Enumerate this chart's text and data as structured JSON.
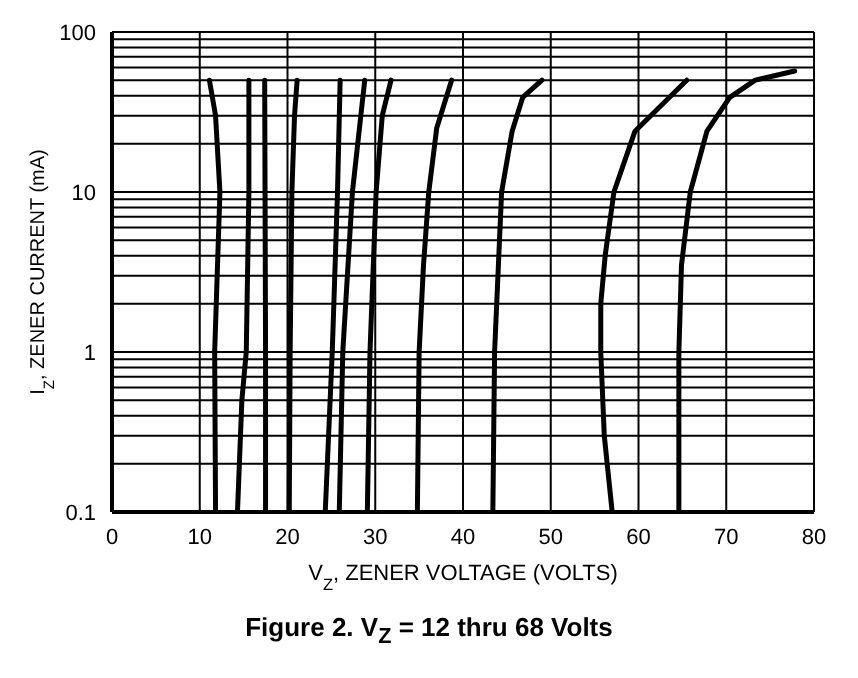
{
  "chart_data": {
    "type": "line",
    "title": "Figure 2. V$_{Z}$ = 12 thru 68 Volts",
    "xlabel": "V$_{Z}$, ZENER VOLTAGE (VOLTS)",
    "ylabel": "I$_{Z}$, ZENER CURRENT (mA)",
    "log": "y",
    "grid": true,
    "legend": false,
    "marker": "none",
    "line_style": "solid",
    "xlim": [
      0,
      80
    ],
    "xticks": [
      0,
      10,
      20,
      30,
      40,
      50,
      60,
      70,
      80
    ],
    "ylim": [
      0.1,
      100
    ],
    "yticks": [
      0.1,
      {
        "value": 0.2,
        "label": null
      },
      {
        "value": 0.3,
        "label": null
      },
      {
        "value": 0.4,
        "label": null
      },
      {
        "value": 0.5,
        "label": null
      },
      {
        "value": 0.6,
        "label": null
      },
      {
        "value": 0.7,
        "label": null
      },
      {
        "value": 0.8,
        "label": null
      },
      {
        "value": 0.9,
        "label": null
      },
      1,
      {
        "value": 2,
        "label": null
      },
      {
        "value": 3,
        "label": null
      },
      {
        "value": 4,
        "label": null
      },
      {
        "value": 5,
        "label": null
      },
      {
        "value": 6,
        "label": null
      },
      {
        "value": 7,
        "label": null
      },
      {
        "value": 8,
        "label": null
      },
      {
        "value": 9,
        "label": null
      },
      10,
      {
        "value": 20,
        "label": null
      },
      {
        "value": 30,
        "label": null
      },
      {
        "value": 40,
        "label": null
      },
      {
        "value": 50,
        "label": null
      },
      {
        "value": 60,
        "label": null
      },
      {
        "value": 70,
        "label": null
      },
      {
        "value": 80,
        "label": null
      },
      {
        "value": 90,
        "label": null
      },
      100
    ],
    "series": [
      {
        "color": "#000000",
        "x": [
          11.8,
          11.7,
          12.3,
          11.8,
          11.1
        ],
        "values": [
          0.1,
          1,
          10,
          30,
          50
        ]
      },
      {
        "color": "#000000",
        "x": [
          14.3,
          14.8,
          15.3,
          15.6,
          15.6
        ],
        "values": [
          0.1,
          0.5,
          1,
          10,
          50
        ]
      },
      {
        "color": "#000000",
        "x": [
          17.5,
          17.5,
          17.4
        ],
        "values": [
          0.1,
          1,
          50
        ]
      },
      {
        "color": "#000000",
        "x": [
          20.2,
          20.3,
          20.5,
          20.8,
          21.1
        ],
        "values": [
          0.1,
          1,
          10,
          30,
          50
        ]
      },
      {
        "color": "#000000",
        "x": [
          24.3,
          25.1,
          25.7,
          26.0
        ],
        "values": [
          0.1,
          1,
          10,
          50
        ]
      },
      {
        "color": "#000000",
        "x": [
          25.9,
          26.3,
          27.4,
          28.8
        ],
        "values": [
          0.1,
          1,
          10,
          50
        ]
      },
      {
        "color": "#000000",
        "x": [
          29.1,
          29.4,
          30.1,
          30.8,
          31.8
        ],
        "values": [
          0.1,
          1,
          10,
          30,
          50
        ]
      },
      {
        "color": "#000000",
        "x": [
          34.8,
          35.0,
          35.5,
          36.1,
          37.0,
          38.7
        ],
        "values": [
          0.1,
          1,
          3.5,
          10,
          25,
          50
        ]
      },
      {
        "color": "#000000",
        "x": [
          43.4,
          43.6,
          44.4,
          45.6,
          46.8,
          49.0
        ],
        "values": [
          0.1,
          1,
          10,
          24,
          39,
          50
        ]
      },
      {
        "color": "#000000",
        "x": [
          57.0,
          56.1,
          55.7,
          55.7,
          56.2,
          57.2,
          59.6,
          65.5
        ],
        "values": [
          0.1,
          0.3,
          1,
          2,
          4,
          10,
          24,
          50
        ]
      },
      {
        "color": "#000000",
        "x": [
          64.6,
          64.6,
          64.9,
          65.9,
          67.8,
          70.4,
          73.3,
          77.8
        ],
        "values": [
          0.1,
          1,
          3.5,
          10,
          24,
          39,
          50,
          57
        ]
      }
    ]
  }
}
